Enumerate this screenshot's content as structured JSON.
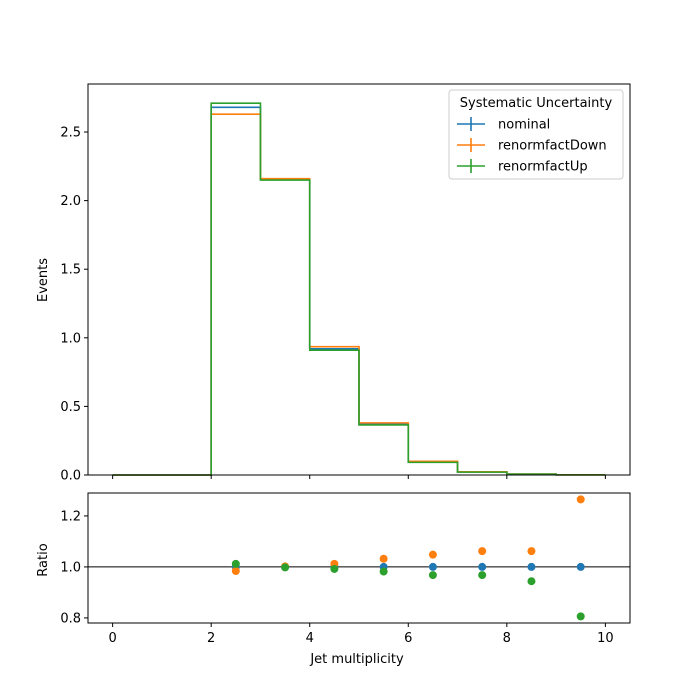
{
  "chart_data": [
    {
      "type": "step",
      "ylabel": "Events",
      "xlim": [
        -0.5,
        10.5
      ],
      "ylim": [
        0,
        2.85
      ],
      "bin_edges": [
        0,
        1,
        2,
        3,
        4,
        5,
        6,
        7,
        8,
        9,
        10
      ],
      "xticks": [
        "0",
        "2",
        "4",
        "6",
        "8",
        "10"
      ],
      "yticks": [
        "0.0",
        "0.5",
        "1.0",
        "1.5",
        "2.0",
        "2.5"
      ],
      "legend": {
        "title": "Systematic Uncertainty",
        "location": "upper right"
      },
      "series": [
        {
          "name": "nominal",
          "color": "#1f77b4",
          "values": [
            0,
            0,
            2.68,
            2.155,
            0.92,
            0.37,
            0.095,
            0.022,
            0.006,
            0.001
          ]
        },
        {
          "name": "renormfactDown",
          "color": "#ff7f0e",
          "values": [
            0,
            0,
            2.63,
            2.16,
            0.935,
            0.38,
            0.1,
            0.023,
            0.007,
            0.0015
          ]
        },
        {
          "name": "renormfactUp",
          "color": "#2ca02c",
          "values": [
            0,
            0,
            2.71,
            2.15,
            0.91,
            0.365,
            0.092,
            0.021,
            0.0058,
            0.0009
          ]
        }
      ]
    },
    {
      "type": "scatter",
      "xlabel": "Jet multiplicity",
      "ylabel": "Ratio",
      "xlim": [
        -0.5,
        10.5
      ],
      "ylim": [
        0.78,
        1.29
      ],
      "xticks": [
        "0",
        "2",
        "4",
        "6",
        "8",
        "10"
      ],
      "yticks": [
        "0.8",
        "1.0",
        "1.2"
      ],
      "reference_line": 1.0,
      "x": [
        2.5,
        3.5,
        4.5,
        5.5,
        6.5,
        7.5,
        8.5,
        9.5
      ],
      "series": [
        {
          "name": "nominal",
          "color": "#1f77b4",
          "values": [
            1.0,
            1.0,
            1.0,
            1.0,
            1.0,
            1.0,
            1.0,
            1.0
          ]
        },
        {
          "name": "renormfactDown",
          "color": "#ff7f0e",
          "values": [
            0.984,
            1.002,
            1.012,
            1.032,
            1.048,
            1.062,
            1.062,
            1.265
          ]
        },
        {
          "name": "renormfactUp",
          "color": "#2ca02c",
          "values": [
            1.012,
            0.998,
            0.992,
            0.982,
            0.968,
            0.968,
            0.944,
            0.806
          ]
        }
      ]
    }
  ]
}
